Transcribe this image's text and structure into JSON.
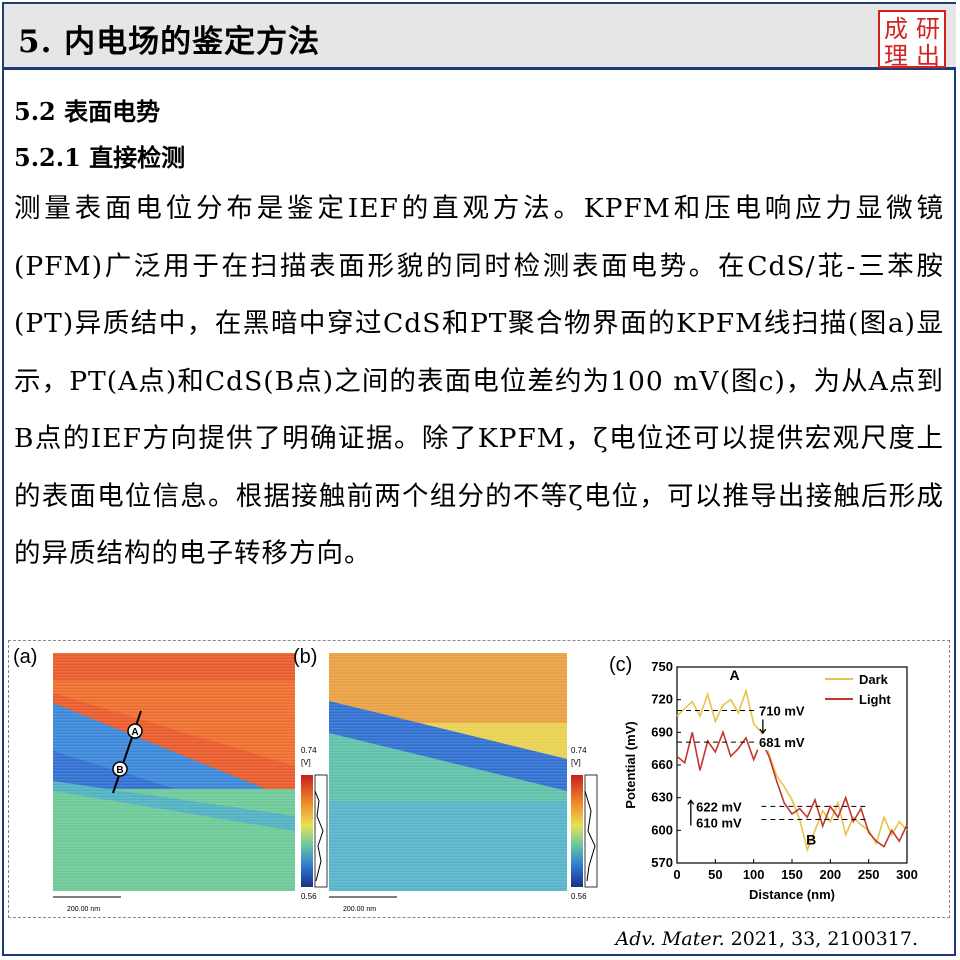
{
  "header": {
    "title": "5. 内电场的鉴定方法",
    "logo_chars": [
      "成",
      "研",
      "理",
      "出"
    ]
  },
  "section": {
    "heading": "5.2 表面电势",
    "subheading": "5.2.1 直接检测"
  },
  "paragraph": "测量表面电位分布是鉴定IEF的直观方法。KPFM和压电响应力显微镜(PFM)广泛用于在扫描表面形貌的同时检测表面电势。在CdS/苝-三苯胺(PT)异质结中，在黑暗中穿过CdS和PT聚合物界面的KPFM线扫描(图a)显示，PT(A点)和CdS(B点)之间的表面电位差约为100 mV(图c)，为从A点到B点的IEF方向提供了明确证据。除了KPFM，ζ电位还可以提供宏观尺度上的表面电位信息。根据接触前两个组分的不等ζ电位，可以推导出接触后形成的异质结构的电子转移方向。",
  "figure": {
    "panel_a": {
      "label": "(a)",
      "point_a": "A",
      "point_b": "B",
      "cbar_max": "0.74",
      "cbar_unit": "[V]",
      "cbar_min": "0.56",
      "scale": "200.00 nm"
    },
    "panel_b": {
      "label": "(b)",
      "cbar_max": "0.74",
      "cbar_unit": "[V]",
      "cbar_min": "0.56",
      "scale": "200.00 nm"
    },
    "panel_c": {
      "label": "(c)",
      "point_a": "A",
      "point_b": "B",
      "ann_710": "710 mV",
      "ann_681": "681 mV",
      "ann_622": "622 mV",
      "ann_610": "610 mV"
    }
  },
  "chart_data": {
    "type": "line",
    "xlabel": "Distance (nm)",
    "ylabel": "Potential (mV)",
    "xlim": [
      0,
      300
    ],
    "ylim": [
      570,
      750
    ],
    "xticks": [
      0,
      50,
      100,
      150,
      200,
      250,
      300
    ],
    "yticks": [
      570,
      600,
      630,
      660,
      690,
      720,
      750
    ],
    "legend_position": "top-right",
    "series": [
      {
        "name": "Dark",
        "color": "#e8c24a",
        "x": [
          0,
          10,
          20,
          30,
          40,
          50,
          60,
          70,
          80,
          90,
          100,
          110,
          120,
          130,
          140,
          150,
          160,
          170,
          180,
          190,
          200,
          210,
          220,
          230,
          240,
          250,
          260,
          270,
          280,
          290,
          300
        ],
        "y": [
          705,
          712,
          718,
          705,
          725,
          700,
          715,
          720,
          708,
          728,
          698,
          690,
          670,
          650,
          640,
          628,
          610,
          582,
          600,
          618,
          608,
          625,
          596,
          612,
          605,
          600,
          588,
          612,
          596,
          608,
          600
        ]
      },
      {
        "name": "Light",
        "color": "#c0392b",
        "x": [
          0,
          10,
          20,
          30,
          40,
          50,
          60,
          70,
          80,
          90,
          100,
          110,
          120,
          130,
          140,
          150,
          160,
          170,
          180,
          190,
          200,
          210,
          220,
          230,
          240,
          250,
          260,
          270,
          280,
          290,
          300
        ],
        "y": [
          668,
          662,
          690,
          655,
          682,
          672,
          690,
          668,
          675,
          685,
          665,
          682,
          668,
          645,
          625,
          615,
          620,
          612,
          628,
          604,
          622,
          612,
          630,
          608,
          620,
          598,
          590,
          585,
          600,
          590,
          605
        ]
      }
    ]
  },
  "citation": {
    "journal": "Adv. Mater.",
    "details": " 2021, 33, 2100317."
  }
}
